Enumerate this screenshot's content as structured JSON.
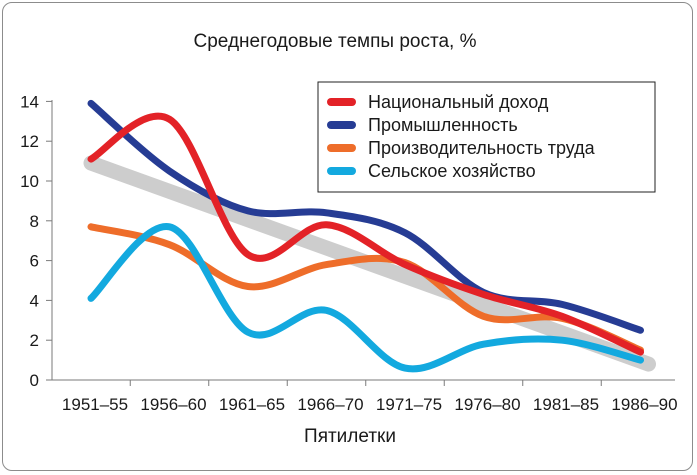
{
  "chart_data": {
    "type": "line",
    "title": "Среднегодовые темпы роста, %",
    "xlabel": "Пятилетки",
    "ylabel": "",
    "categories": [
      "1951–55",
      "1956–60",
      "1961–65",
      "1966–70",
      "1971–75",
      "1976–80",
      "1981–85",
      "1986–90"
    ],
    "yticks": [
      0,
      2,
      4,
      6,
      8,
      10,
      12,
      14
    ],
    "ylim": [
      0,
      14.5
    ],
    "grid": false,
    "legend_position": "top-right",
    "series": [
      {
        "name": "Национальный доход",
        "color": "#e32227",
        "values": [
          11.1,
          13.1,
          6.3,
          7.8,
          5.8,
          4.3,
          3.2,
          1.4
        ]
      },
      {
        "name": "Промышленность",
        "color": "#263c94",
        "values": [
          13.9,
          10.5,
          8.5,
          8.4,
          7.4,
          4.4,
          3.8,
          2.5
        ]
      },
      {
        "name": "Производительность труда",
        "color": "#ee6d2a",
        "values": [
          7.7,
          6.8,
          4.7,
          5.8,
          5.9,
          3.2,
          3.1,
          1.5
        ]
      },
      {
        "name": "Сельское хозяйство",
        "color": "#13a9df",
        "values": [
          4.1,
          7.7,
          2.4,
          3.5,
          0.6,
          1.8,
          2.0,
          1.0
        ]
      }
    ],
    "trend": {
      "color": "#c8c8c8",
      "from": [
        0,
        10.9
      ],
      "to": [
        7,
        0.8
      ]
    }
  }
}
